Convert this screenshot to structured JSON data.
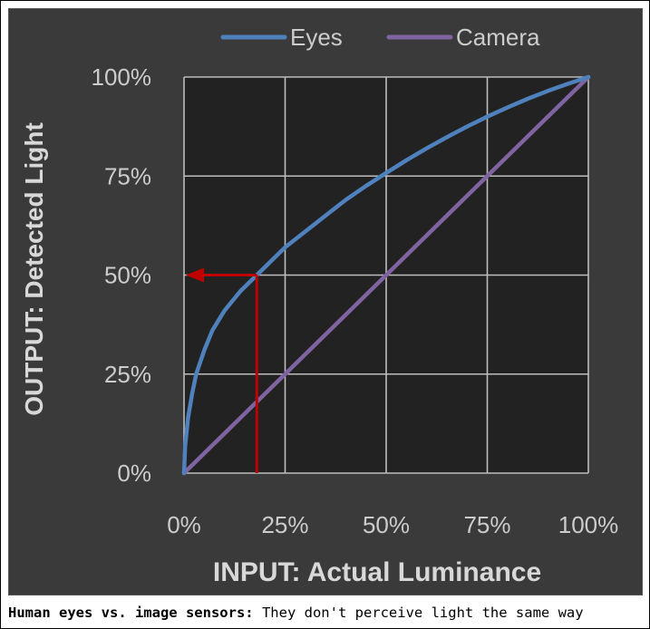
{
  "caption": {
    "bold": "Human eyes vs. image sensors:",
    "text": " They don't perceive light the same way"
  },
  "chart_data": {
    "type": "line",
    "xlabel_bold": "INPUT:",
    "xlabel_rest": " Actual Luminance",
    "ylabel_bold": "OUTPUT:",
    "ylabel_rest": " Detected Light",
    "xlim": [
      0,
      100
    ],
    "ylim": [
      0,
      100
    ],
    "x_ticks": [
      "0%",
      "25%",
      "50%",
      "75%",
      "100%"
    ],
    "y_ticks": [
      "0%",
      "25%",
      "50%",
      "75%",
      "100%"
    ],
    "grid": true,
    "legend_position": "top",
    "series": [
      {
        "name": "Eyes",
        "color": "#4f81bd",
        "x": [
          0,
          0.3,
          1,
          2,
          3,
          5,
          7,
          10,
          14,
          18,
          22,
          25,
          30,
          35,
          40,
          45,
          50,
          55,
          60,
          65,
          70,
          75,
          80,
          85,
          90,
          95,
          100
        ],
        "y": [
          0,
          7,
          14,
          20,
          25,
          31,
          36,
          41,
          46,
          50,
          54,
          57,
          61,
          65,
          69,
          72.5,
          75.8,
          79,
          82,
          84.8,
          87.5,
          90,
          92.3,
          94.5,
          96.5,
          98.3,
          100
        ]
      },
      {
        "name": "Camera",
        "color": "#8064a2",
        "x": [
          0,
          100
        ],
        "y": [
          0,
          100
        ]
      }
    ],
    "annotation": {
      "color": "#c00000",
      "x": 18,
      "y": 50
    }
  }
}
